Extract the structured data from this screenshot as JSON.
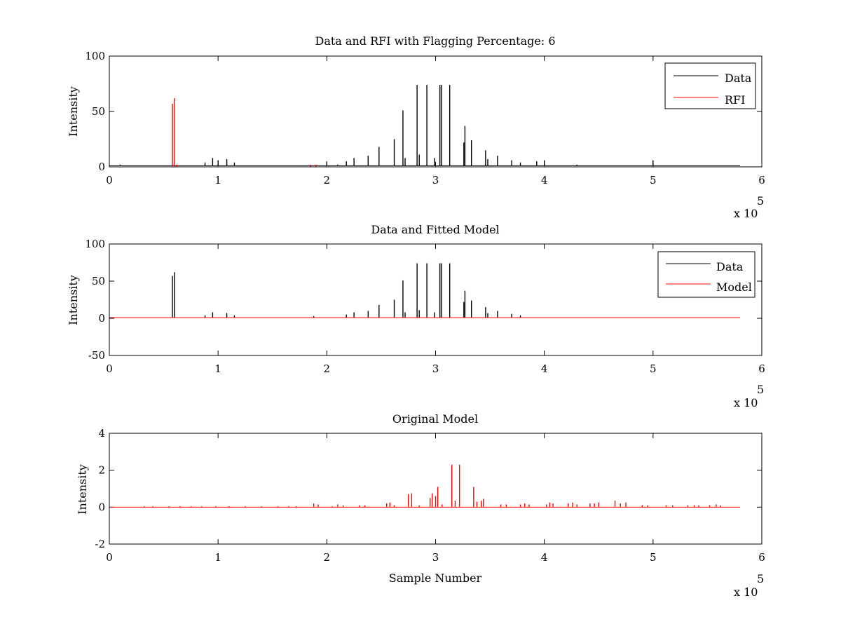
{
  "colors": {
    "data": "#000000",
    "rfi": "#ff0000",
    "model": "#ff0000",
    "axes": "#000000",
    "background": "#ffffff"
  },
  "chart_data": [
    {
      "type": "line",
      "title": "Data and RFI with Flagging Percentage: 6",
      "xlabel": "",
      "ylabel": "Intensity",
      "xlim": [
        0,
        600000
      ],
      "ylim": [
        0,
        100
      ],
      "xticks": [
        0,
        1,
        2,
        3,
        4,
        5,
        6
      ],
      "yticks": [
        0,
        50,
        100
      ],
      "x_exponent": "x 10",
      "x_exponent_power": "5",
      "grid": false,
      "legend_position": "top-right",
      "series": [
        {
          "name": "Data",
          "color": "#000000",
          "baseline": 1,
          "x_end": 580000,
          "spikes": [
            [
              10000,
              2
            ],
            [
              20000,
              1
            ],
            [
              30000,
              1
            ],
            [
              45000,
              1
            ],
            [
              88000,
              4
            ],
            [
              95000,
              8
            ],
            [
              100000,
              6
            ],
            [
              108000,
              7
            ],
            [
              115000,
              4
            ],
            [
              130000,
              1
            ],
            [
              150000,
              1
            ],
            [
              170000,
              1
            ],
            [
              200000,
              5
            ],
            [
              210000,
              2
            ],
            [
              218000,
              5
            ],
            [
              225000,
              8
            ],
            [
              238000,
              10
            ],
            [
              248000,
              18
            ],
            [
              262000,
              25
            ],
            [
              270000,
              51
            ],
            [
              272000,
              8
            ],
            [
              283000,
              74
            ],
            [
              285000,
              11
            ],
            [
              292000,
              74
            ],
            [
              299000,
              8
            ],
            [
              304000,
              74
            ],
            [
              305500,
              74
            ],
            [
              313000,
              74
            ],
            [
              326000,
              22
            ],
            [
              327000,
              37
            ],
            [
              333000,
              24
            ],
            [
              346000,
              15
            ],
            [
              348000,
              7
            ],
            [
              357000,
              10
            ],
            [
              370000,
              6
            ],
            [
              378000,
              4
            ],
            [
              393000,
              5
            ],
            [
              400000,
              6
            ],
            [
              430000,
              2
            ],
            [
              460000,
              1
            ],
            [
              500000,
              6
            ],
            [
              520000,
              1
            ],
            [
              560000,
              1
            ]
          ]
        },
        {
          "name": "RFI",
          "color": "#ff0000",
          "baseline": 0,
          "x_end": 580000,
          "spikes": [
            [
              58000,
              57
            ],
            [
              60000,
              62
            ],
            [
              62000,
              2
            ],
            [
              185000,
              2
            ],
            [
              190000,
              2
            ]
          ]
        }
      ]
    },
    {
      "type": "line",
      "title": "Data and Fitted Model",
      "xlabel": "",
      "ylabel": "Intensity",
      "xlim": [
        0,
        600000
      ],
      "ylim": [
        -50,
        100
      ],
      "xticks": [
        0,
        1,
        2,
        3,
        4,
        5,
        6
      ],
      "yticks": [
        -50,
        0,
        50,
        100
      ],
      "x_exponent": "x 10",
      "x_exponent_power": "5",
      "grid": false,
      "legend_position": "top-right",
      "series": [
        {
          "name": "Data",
          "color": "#000000",
          "baseline": 1,
          "x_end": 580000,
          "spikes": [
            [
              58000,
              57
            ],
            [
              60000,
              62
            ],
            [
              88000,
              4
            ],
            [
              95000,
              8
            ],
            [
              108000,
              7
            ],
            [
              115000,
              4
            ],
            [
              188000,
              3
            ],
            [
              218000,
              5
            ],
            [
              225000,
              8
            ],
            [
              238000,
              10
            ],
            [
              248000,
              18
            ],
            [
              262000,
              25
            ],
            [
              270000,
              51
            ],
            [
              272000,
              8
            ],
            [
              283000,
              74
            ],
            [
              285000,
              11
            ],
            [
              292000,
              74
            ],
            [
              299000,
              8
            ],
            [
              304000,
              74
            ],
            [
              305500,
              74
            ],
            [
              313000,
              74
            ],
            [
              326000,
              22
            ],
            [
              327000,
              37
            ],
            [
              333000,
              24
            ],
            [
              346000,
              15
            ],
            [
              348000,
              7
            ],
            [
              357000,
              10
            ],
            [
              370000,
              6
            ],
            [
              378000,
              4
            ]
          ]
        },
        {
          "name": "Model",
          "color": "#ff0000",
          "baseline": 1,
          "x_end": 580000,
          "spikes": []
        }
      ]
    },
    {
      "type": "line",
      "title": "Original Model",
      "xlabel": "Sample Number",
      "ylabel": "Intensity",
      "xlim": [
        0,
        600000
      ],
      "ylim": [
        -2,
        4
      ],
      "xticks": [
        0,
        1,
        2,
        3,
        4,
        5,
        6
      ],
      "yticks": [
        -2,
        0,
        2,
        4
      ],
      "x_exponent": "x 10",
      "x_exponent_power": "5",
      "grid": false,
      "legend_position": "none",
      "series": [
        {
          "name": "",
          "color": "#ff0000",
          "baseline": 0,
          "x_end": 580000,
          "spikes": [
            [
              32000,
              0.05
            ],
            [
              40000,
              0.05
            ],
            [
              55000,
              0.05
            ],
            [
              65000,
              0.05
            ],
            [
              75000,
              0.05
            ],
            [
              85000,
              0.05
            ],
            [
              98000,
              0.05
            ],
            [
              110000,
              0.05
            ],
            [
              125000,
              0.05
            ],
            [
              140000,
              0.05
            ],
            [
              155000,
              0.05
            ],
            [
              165000,
              0.05
            ],
            [
              172000,
              0.05
            ],
            [
              188000,
              0.2
            ],
            [
              192000,
              0.15
            ],
            [
              205000,
              0.05
            ],
            [
              210000,
              0.15
            ],
            [
              215000,
              0.1
            ],
            [
              230000,
              0.1
            ],
            [
              235000,
              0.1
            ],
            [
              255000,
              0.2
            ],
            [
              258000,
              0.25
            ],
            [
              262000,
              0.1
            ],
            [
              275000,
              0.7
            ],
            [
              278000,
              0.75
            ],
            [
              285000,
              0.1
            ],
            [
              295000,
              0.5
            ],
            [
              297000,
              0.75
            ],
            [
              300000,
              0.6
            ],
            [
              302000,
              1.1
            ],
            [
              306000,
              0.15
            ],
            [
              315000,
              2.3
            ],
            [
              318000,
              0.35
            ],
            [
              322000,
              2.3
            ],
            [
              335000,
              1.1
            ],
            [
              338000,
              0.3
            ],
            [
              342000,
              0.35
            ],
            [
              344000,
              0.45
            ],
            [
              360000,
              0.15
            ],
            [
              365000,
              0.15
            ],
            [
              378000,
              0.15
            ],
            [
              382000,
              0.2
            ],
            [
              386000,
              0.15
            ],
            [
              402000,
              0.15
            ],
            [
              405000,
              0.25
            ],
            [
              408000,
              0.2
            ],
            [
              422000,
              0.2
            ],
            [
              426000,
              0.25
            ],
            [
              430000,
              0.15
            ],
            [
              442000,
              0.2
            ],
            [
              446000,
              0.2
            ],
            [
              450000,
              0.25
            ],
            [
              465000,
              0.35
            ],
            [
              470000,
              0.2
            ],
            [
              475000,
              0.25
            ],
            [
              490000,
              0.1
            ],
            [
              495000,
              0.1
            ],
            [
              512000,
              0.1
            ],
            [
              518000,
              0.1
            ],
            [
              532000,
              0.1
            ],
            [
              538000,
              0.1
            ],
            [
              542000,
              0.1
            ],
            [
              552000,
              0.1
            ],
            [
              558000,
              0.15
            ],
            [
              562000,
              0.1
            ]
          ]
        }
      ]
    }
  ]
}
